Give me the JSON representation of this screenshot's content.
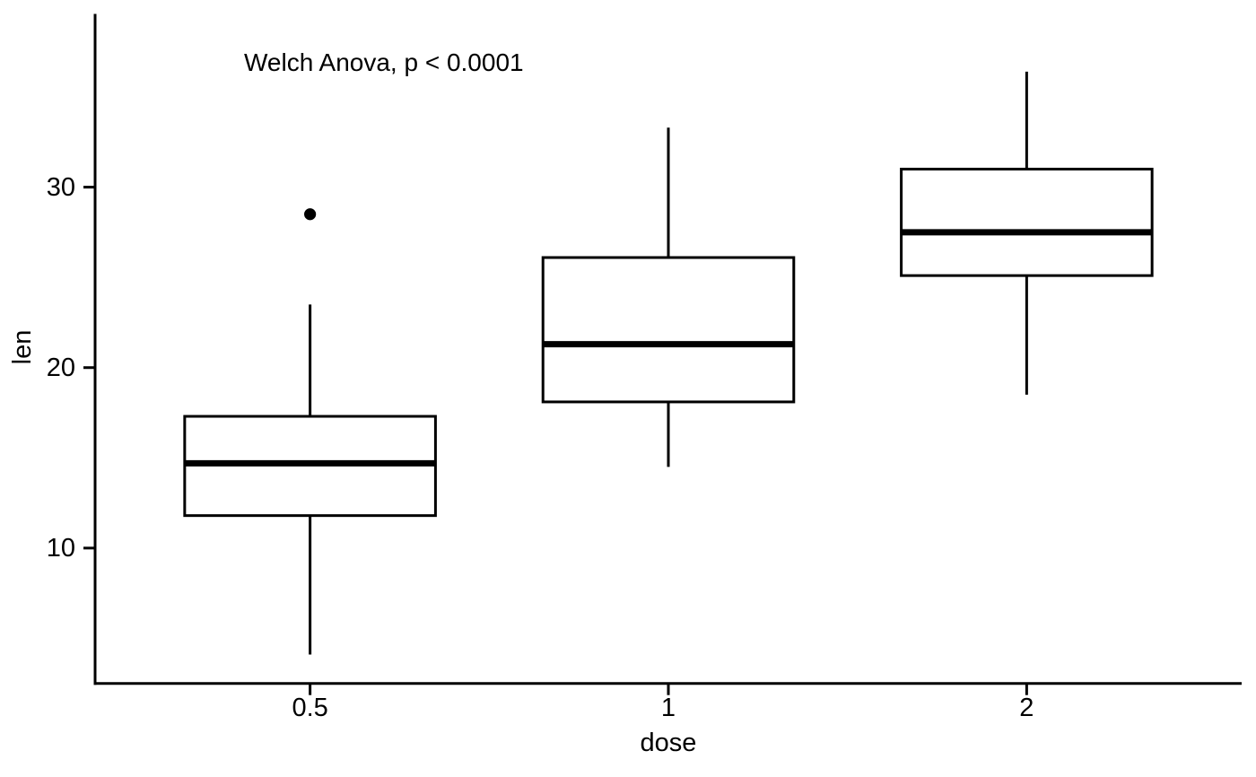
{
  "chart_data": {
    "type": "boxplot",
    "annotation": "Welch Anova, p < 0.0001",
    "xlabel": "dose",
    "ylabel": "len",
    "categories": [
      "0.5",
      "1",
      "2"
    ],
    "y_ticks": [
      10,
      20,
      30
    ],
    "ylim": [
      2.5,
      39.6
    ],
    "grid": false,
    "legend": "none",
    "box_width_ratio": 0.7,
    "series": [
      {
        "category": "0.5",
        "min": 4.1,
        "q1": 11.8,
        "median": 14.7,
        "q3": 17.3,
        "max": 23.5,
        "outliers": [
          28.5
        ]
      },
      {
        "category": "1",
        "min": 14.5,
        "q1": 18.1,
        "median": 21.3,
        "q3": 26.1,
        "max": 33.3,
        "outliers": []
      },
      {
        "category": "2",
        "min": 18.5,
        "q1": 25.1,
        "median": 27.5,
        "q3": 31.0,
        "max": 36.4,
        "outliers": []
      }
    ],
    "colors": {
      "stroke": "#000000",
      "box_fill": "#ffffff",
      "text": "#000000",
      "background": "#ffffff"
    }
  }
}
